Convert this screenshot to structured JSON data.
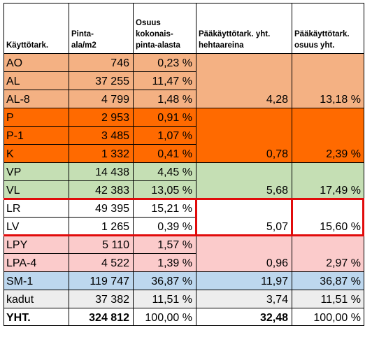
{
  "headers": [
    "Käyttötark.",
    "Pinta-\nala/m2",
    "Osuus\nkokonais-\npinta-alasta",
    "Pääkäyttötark. yht.\nhehtaareina",
    "Pääkäyttötark.\nosuus yht."
  ],
  "rows": [
    {
      "code": "AO",
      "area": "746",
      "share": "0,23 %"
    },
    {
      "code": "AL",
      "area": "37 255",
      "share": "11,47 %"
    },
    {
      "code": "AL-8",
      "area": "4 799",
      "share": "1,48 %"
    },
    {
      "code": "P",
      "area": "2 953",
      "share": "0,91 %"
    },
    {
      "code": "P-1",
      "area": "3 485",
      "share": "1,07 %"
    },
    {
      "code": "K",
      "area": "1 332",
      "share": "0,41 %"
    },
    {
      "code": "VP",
      "area": "14 438",
      "share": "4,45 %"
    },
    {
      "code": "VL",
      "area": "42 383",
      "share": "13,05 %"
    },
    {
      "code": "LR",
      "area": "49 395",
      "share": "15,21 %"
    },
    {
      "code": "LV",
      "area": "1 265",
      "share": "0,39 %"
    },
    {
      "code": "LPY",
      "area": "5 110",
      "share": "1,57 %"
    },
    {
      "code": "LPA-4",
      "area": "4 522",
      "share": "1,39 %"
    },
    {
      "code": "SM-1",
      "area": "119 747",
      "share": "36,87 %"
    },
    {
      "code": "kadut",
      "area": "37 382",
      "share": "11,51 %"
    }
  ],
  "groups": [
    {
      "codes": [
        "AO",
        "AL",
        "AL-8"
      ],
      "hectares": "4,28",
      "group_share": "13,18 %",
      "color": "#f4b183"
    },
    {
      "codes": [
        "P",
        "P-1",
        "K"
      ],
      "hectares": "0,78",
      "group_share": "2,39 %",
      "color": "#ff6a00"
    },
    {
      "codes": [
        "VP",
        "VL"
      ],
      "hectares": "5,68",
      "group_share": "17,49 %",
      "color": "#c5dfb4"
    },
    {
      "codes": [
        "LR",
        "LV"
      ],
      "hectares": "5,07",
      "group_share": "15,60 %",
      "color": "#ffffff"
    },
    {
      "codes": [
        "LPY",
        "LPA-4"
      ],
      "hectares": "0,96",
      "group_share": "2,97 %",
      "color": "#fbcbcb"
    },
    {
      "codes": [
        "SM-1"
      ],
      "hectares": "11,97",
      "group_share": "36,87 %",
      "color": "#bdd7ee"
    },
    {
      "codes": [
        "kadut"
      ],
      "hectares": "3,74",
      "group_share": "11,51 %",
      "color": "#ededed"
    }
  ],
  "left_colors": {
    "AO": "#f4b183",
    "AL": "#f4b183",
    "AL-8": "#f4b183",
    "P": "#ff6a00",
    "P-1": "#ff6a00",
    "K": "#ff6a00",
    "VP": "#c5dfb4",
    "VL": "#c5dfb4",
    "LR": "#ffffff",
    "LV": "#ffffff",
    "LPY": "#fbcbcb",
    "LPA-4": "#fbcbcb",
    "SM-1": "#bdd7ee",
    "kadut": "#ededed"
  },
  "total": {
    "label": "YHT.",
    "area": "324 812",
    "share": "100,00 %",
    "hectares": "32,48",
    "group_share": "100,00 %"
  },
  "colors": {
    "grid": "#000000",
    "highlight_border": "#e10b0b"
  }
}
